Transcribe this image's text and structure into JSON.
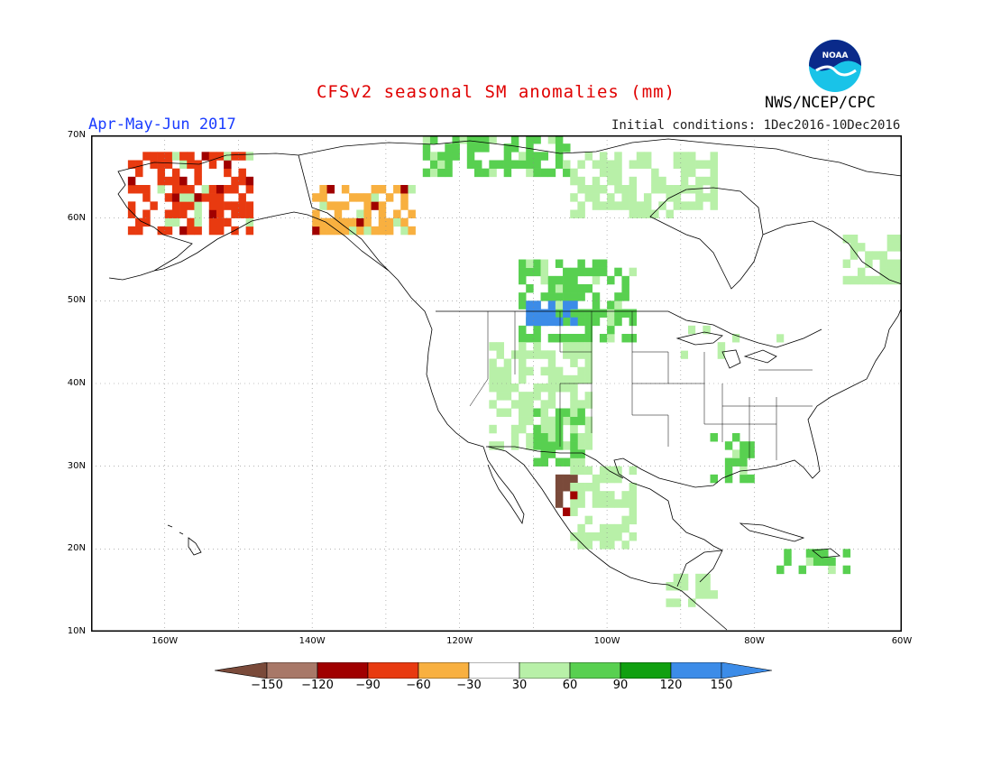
{
  "header": {
    "title": "CFSv2 seasonal SM anomalies (mm)",
    "period": "Apr-May-Jun 2017",
    "initial_conditions": "Initial conditions: 1Dec2016-10Dec2016",
    "agency": "NWS/NCEP/CPC",
    "logo_text": "NOAA"
  },
  "axes": {
    "lat_labels": [
      "70N",
      "60N",
      "50N",
      "40N",
      "30N",
      "20N",
      "10N"
    ],
    "lon_labels": [
      "160W",
      "140W",
      "120W",
      "100W",
      "80W",
      "60W"
    ]
  },
  "legend": {
    "labels": [
      "-150",
      "-120",
      "-90",
      "-60",
      "-30",
      "30",
      "60",
      "90",
      "120",
      "150"
    ],
    "colors": [
      "#7a4a3a",
      "#a87868",
      "#a00000",
      "#e83a10",
      "#f8b040",
      "#ffffff",
      "#b8f0a8",
      "#58d050",
      "#10a010",
      "#3c8ce8",
      "#3c8ce8"
    ]
  },
  "colors": {
    "title": "#e00000",
    "period": "#1a3cff",
    "land_outline": "#000000",
    "grid": "#888888"
  },
  "anomaly_regions": [
    {
      "name": "alaska-west",
      "category": "-60",
      "lat": [
        58,
        68
      ],
      "lon": [
        -165,
        -148
      ]
    },
    {
      "name": "yukon",
      "category": "-30",
      "lat": [
        58,
        64
      ],
      "lon": [
        -140,
        -126
      ]
    },
    {
      "name": "arctic-islands",
      "category": "90",
      "lat": [
        65,
        70
      ],
      "lon": [
        -125,
        -105
      ]
    },
    {
      "name": "hudson-west",
      "category": "60",
      "lat": [
        60,
        68
      ],
      "lon": [
        -105,
        -85
      ]
    },
    {
      "name": "northern-plains",
      "category": "90",
      "lat": [
        45,
        55
      ],
      "lon": [
        -112,
        -96
      ]
    },
    {
      "name": "montana",
      "category": "150",
      "lat": [
        47,
        50
      ],
      "lon": [
        -111,
        -104
      ]
    },
    {
      "name": "rockies",
      "category": "60",
      "lat": [
        32,
        45
      ],
      "lon": [
        -116,
        -102
      ]
    },
    {
      "name": "new-mexico",
      "category": "90",
      "lat": [
        30,
        37
      ],
      "lon": [
        -110,
        -103
      ]
    },
    {
      "name": "mexico-sierra",
      "category": "-150",
      "lat": [
        24,
        29
      ],
      "lon": [
        -107,
        -104
      ]
    },
    {
      "name": "mexico-central",
      "category": "60",
      "lat": [
        20,
        30
      ],
      "lon": [
        -105,
        -96
      ]
    },
    {
      "name": "great-lakes",
      "category": "30",
      "lat": [
        43,
        47
      ],
      "lon": [
        -90,
        -75
      ]
    },
    {
      "name": "southeast",
      "category": "90",
      "lat": [
        28,
        34
      ],
      "lon": [
        -86,
        -80
      ]
    },
    {
      "name": "central-america",
      "category": "60",
      "lat": [
        13,
        17
      ],
      "lon": [
        -92,
        -85
      ]
    },
    {
      "name": "caribbean",
      "category": "90",
      "lat": [
        17,
        20
      ],
      "lon": [
        -77,
        -67
      ]
    },
    {
      "name": "labrador",
      "category": "60",
      "lat": [
        52,
        58
      ],
      "lon": [
        -68,
        -60
      ]
    }
  ]
}
